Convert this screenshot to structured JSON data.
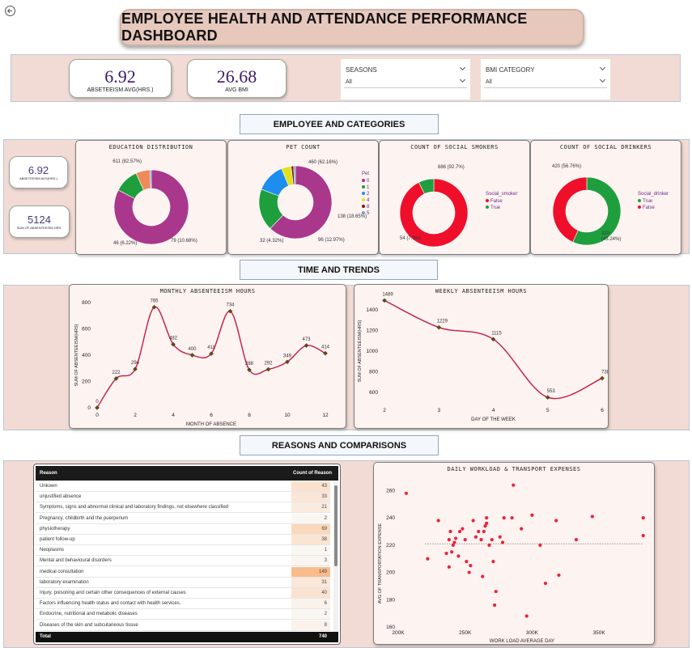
{
  "header": {
    "title": "EMPLOYEE HEALTH AND ATTENDANCE PERFORMANCE DASHBOARD",
    "back_icon": "back-arrow-icon"
  },
  "kpis": {
    "absenteeism_avg": {
      "value": "6.92",
      "label": "ABSETEEISM AVG(HRS.)"
    },
    "avg_bmi": {
      "value": "26.68",
      "label": "AVG BMI"
    }
  },
  "slicers": {
    "seasons": {
      "title": "SEASONS",
      "value": "All"
    },
    "bmi": {
      "title": "BMI CATEGORY",
      "value": "All"
    }
  },
  "sections": {
    "employee": "EMPLOYEE AND CATEGORIES",
    "time": "TIME AND TRENDS",
    "reasons": "REASONS AND COMPARISONS"
  },
  "side_kpis": {
    "avg": {
      "value": "6.92",
      "label": "ABSETEEISM AVG(HRS.)"
    },
    "sum": {
      "value": "5124",
      "label": "SUM OF ABSENTEEISM HRS."
    }
  },
  "colors": {
    "purple": "#a9378c",
    "green": "#1f9e3e",
    "orange": "#ef8a5a",
    "blue": "#1d8ef0",
    "yellow": "#e1e11a",
    "red": "#ef0f2a",
    "darkred": "#7a1b1b",
    "line": "#c41a44",
    "marker": "#5a4a1a"
  },
  "chart_data": [
    {
      "type": "pie",
      "title": "EDUCATION DISTRIBUTION",
      "slices": [
        {
          "value": 611,
          "label": "611 (82.57%)",
          "color": "#a9378c"
        },
        {
          "value": 79,
          "label": "79 (10.68%)",
          "color": "#1f9e3e"
        },
        {
          "value": 46,
          "label": "46 (6.22%)",
          "color": "#ef8a5a"
        },
        {
          "value": 4,
          "label": "",
          "color": "#1d8ef0"
        }
      ]
    },
    {
      "type": "pie",
      "title": "PET COUNT",
      "legend_title": "Pet",
      "slices": [
        {
          "name": "0",
          "value": 460,
          "label": "460 (62.16%)",
          "color": "#a9378c"
        },
        {
          "name": "1",
          "value": 138,
          "label": "138 (18.65%)",
          "color": "#1f9e3e"
        },
        {
          "name": "2",
          "value": 96,
          "label": "96 (12.97%)",
          "color": "#1d8ef0"
        },
        {
          "name": "4",
          "value": 32,
          "label": "32 (4.32%)",
          "color": "#e1e11a"
        },
        {
          "name": "8",
          "value": 8,
          "label": "",
          "color": "#7a1b1b"
        },
        {
          "name": "5",
          "value": 6,
          "label": "",
          "color": "#6fa0c8"
        }
      ]
    },
    {
      "type": "pie",
      "title": "COUNT OF SOCIAL SMOKERS",
      "legend_title": "Social_smoker",
      "slices": [
        {
          "name": "False",
          "value": 686,
          "label": "686 (92.7%)",
          "color": "#ef0f2a"
        },
        {
          "name": "True",
          "value": 54,
          "label": "54 (7.3%)",
          "color": "#1f9e3e"
        }
      ]
    },
    {
      "type": "pie",
      "title": "COUNT OF SOCIAL DRINKERS",
      "legend_title": "Social_drinker",
      "slices": [
        {
          "name": "True",
          "value": 420,
          "label": "420 (56.76%)",
          "color": "#1f9e3e"
        },
        {
          "name": "False",
          "value": 320,
          "label": "320",
          "label2": "(43.24%)",
          "color": "#ef0f2a"
        }
      ]
    },
    {
      "type": "line",
      "title": "MONTHLY ABSENTEEISM HOURS",
      "xlabel": "MONTH OF ABSENCE",
      "ylabel": "SUM OF ABSENTEEISM(HRS)",
      "x": [
        0,
        1,
        2,
        3,
        4,
        5,
        6,
        7,
        8,
        9,
        10,
        11,
        12
      ],
      "y": [
        0,
        222,
        294,
        765,
        482,
        400,
        411,
        734,
        288,
        292,
        349,
        473,
        414
      ],
      "xticks": [
        0,
        2,
        4,
        6,
        8,
        10,
        12
      ],
      "yticks": [
        0,
        200,
        400,
        600,
        800
      ],
      "xlim": [
        0,
        12
      ],
      "ylim": [
        0,
        800
      ]
    },
    {
      "type": "line",
      "title": "WEEKLY ABSENTEEISM HOURS",
      "xlabel": "DAY OF THE WEEK",
      "ylabel": "SUM OF ABSENTEEISM(HRS)",
      "x": [
        2,
        3,
        4,
        5,
        6
      ],
      "y": [
        1489,
        1229,
        1115,
        553,
        738
      ],
      "xticks": [
        2,
        3,
        4,
        5,
        6
      ],
      "yticks": [
        600,
        800,
        1000,
        1200,
        1400
      ],
      "xlim": [
        2,
        6
      ],
      "ylim": [
        500,
        1500
      ]
    },
    {
      "type": "table",
      "columns": [
        "Reason",
        "Count of Reason"
      ],
      "rows": [
        [
          "Unkown",
          "43"
        ],
        [
          "unjustified absence",
          "33"
        ],
        [
          "Symptoms, signs and abnormal clinical and laboratory findings, not elsewhere classified",
          "21"
        ],
        [
          "Pregnancy, childbirth and the puerperium",
          "2"
        ],
        [
          "physiotherapy",
          "69"
        ],
        [
          "patient follow-up",
          "38"
        ],
        [
          "Neoplasms",
          "1"
        ],
        [
          "Mental and behavioural disorders",
          "3"
        ],
        [
          "medical consultation",
          "149"
        ],
        [
          "laboratory examination",
          "31"
        ],
        [
          "Injury, poisoning and certain other consequences of external causes",
          "40"
        ],
        [
          "Factors influencing health status and contact with health services.",
          "6"
        ],
        [
          "Endocrine, nutritional and metabolic diseases",
          "2"
        ],
        [
          "Diseases of the skin and subcutaneous tissue",
          "8"
        ]
      ],
      "total_label": "Total",
      "total_value": "740"
    },
    {
      "type": "scatter",
      "title": "DAILY WORKLOAD & TRANSPORT EXPENSES",
      "xlabel": "WORK LOAD AVERAGE DAY",
      "ylabel": "AVG OF TRANSPORTATION EXPENSE",
      "xlim": [
        200000,
        385000
      ],
      "ylim": [
        160,
        265
      ],
      "xticks": [
        200000,
        250000,
        300000,
        350000
      ],
      "xtick_labels": [
        "200K",
        "250K",
        "300K",
        "350K"
      ],
      "yticks": [
        160,
        180,
        200,
        220,
        240,
        260
      ],
      "trend_y": 221,
      "points": [
        [
          206000,
          258
        ],
        [
          222000,
          210
        ],
        [
          230000,
          238
        ],
        [
          236000,
          214
        ],
        [
          238000,
          204
        ],
        [
          238000,
          224
        ],
        [
          239000,
          230
        ],
        [
          240000,
          215
        ],
        [
          241000,
          220
        ],
        [
          242000,
          222
        ],
        [
          243000,
          225
        ],
        [
          245000,
          212
        ],
        [
          246000,
          230
        ],
        [
          248000,
          232
        ],
        [
          250000,
          224
        ],
        [
          251000,
          208
        ],
        [
          253000,
          200
        ],
        [
          254000,
          205
        ],
        [
          256000,
          238
        ],
        [
          258000,
          226
        ],
        [
          260000,
          230
        ],
        [
          262000,
          224
        ],
        [
          263000,
          197
        ],
        [
          264000,
          230
        ],
        [
          265000,
          234
        ],
        [
          266000,
          236
        ],
        [
          266000,
          240
        ],
        [
          268000,
          220
        ],
        [
          270000,
          224
        ],
        [
          271000,
          208
        ],
        [
          272000,
          176
        ],
        [
          273000,
          186
        ],
        [
          276000,
          226
        ],
        [
          278000,
          222
        ],
        [
          279000,
          240
        ],
        [
          285000,
          240
        ],
        [
          286000,
          264
        ],
        [
          292000,
          232
        ],
        [
          296000,
          168
        ],
        [
          300000,
          242
        ],
        [
          306000,
          220
        ],
        [
          310000,
          192
        ],
        [
          318000,
          238
        ],
        [
          320000,
          198
        ],
        [
          333000,
          224
        ],
        [
          345000,
          241
        ],
        [
          383000,
          240
        ],
        [
          383000,
          227
        ]
      ]
    }
  ]
}
